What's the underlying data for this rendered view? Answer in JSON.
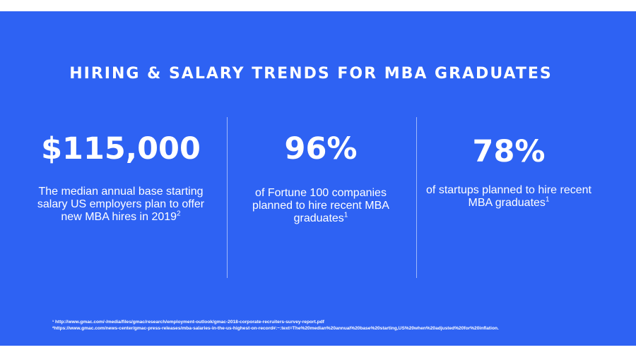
{
  "slide": {
    "title": "HIRING & SALARY TRENDS FOR MBA GRADUATES",
    "stats": [
      {
        "value": "$115,000",
        "description": "The median annual base starting salary US employers plan to offer new MBA hires in 2019",
        "footnote_ref": "2"
      },
      {
        "value": "96%",
        "description": "of Fortune 100 companies planned to hire recent MBA graduates",
        "footnote_ref": "1"
      },
      {
        "value": "78%",
        "description": "of startups planned to hire recent MBA graduates",
        "footnote_ref": "1"
      }
    ],
    "footnotes": [
      "¹ http://www.gmac.com/-/media/files/gmac/research/employment-outlook/gmac-2018-corporate-recruiters-survey-report.pdf",
      "²https://www.gmac.com/news-center/gmac-press-releases/mba-salaries-in-the-us-highest-on-record#:~:text=The%20median%20annual%20base%20starting,US%20when%20adjusted%20for%20inflation."
    ],
    "background_color": "#2e62f3",
    "text_color": "#ffffff"
  }
}
